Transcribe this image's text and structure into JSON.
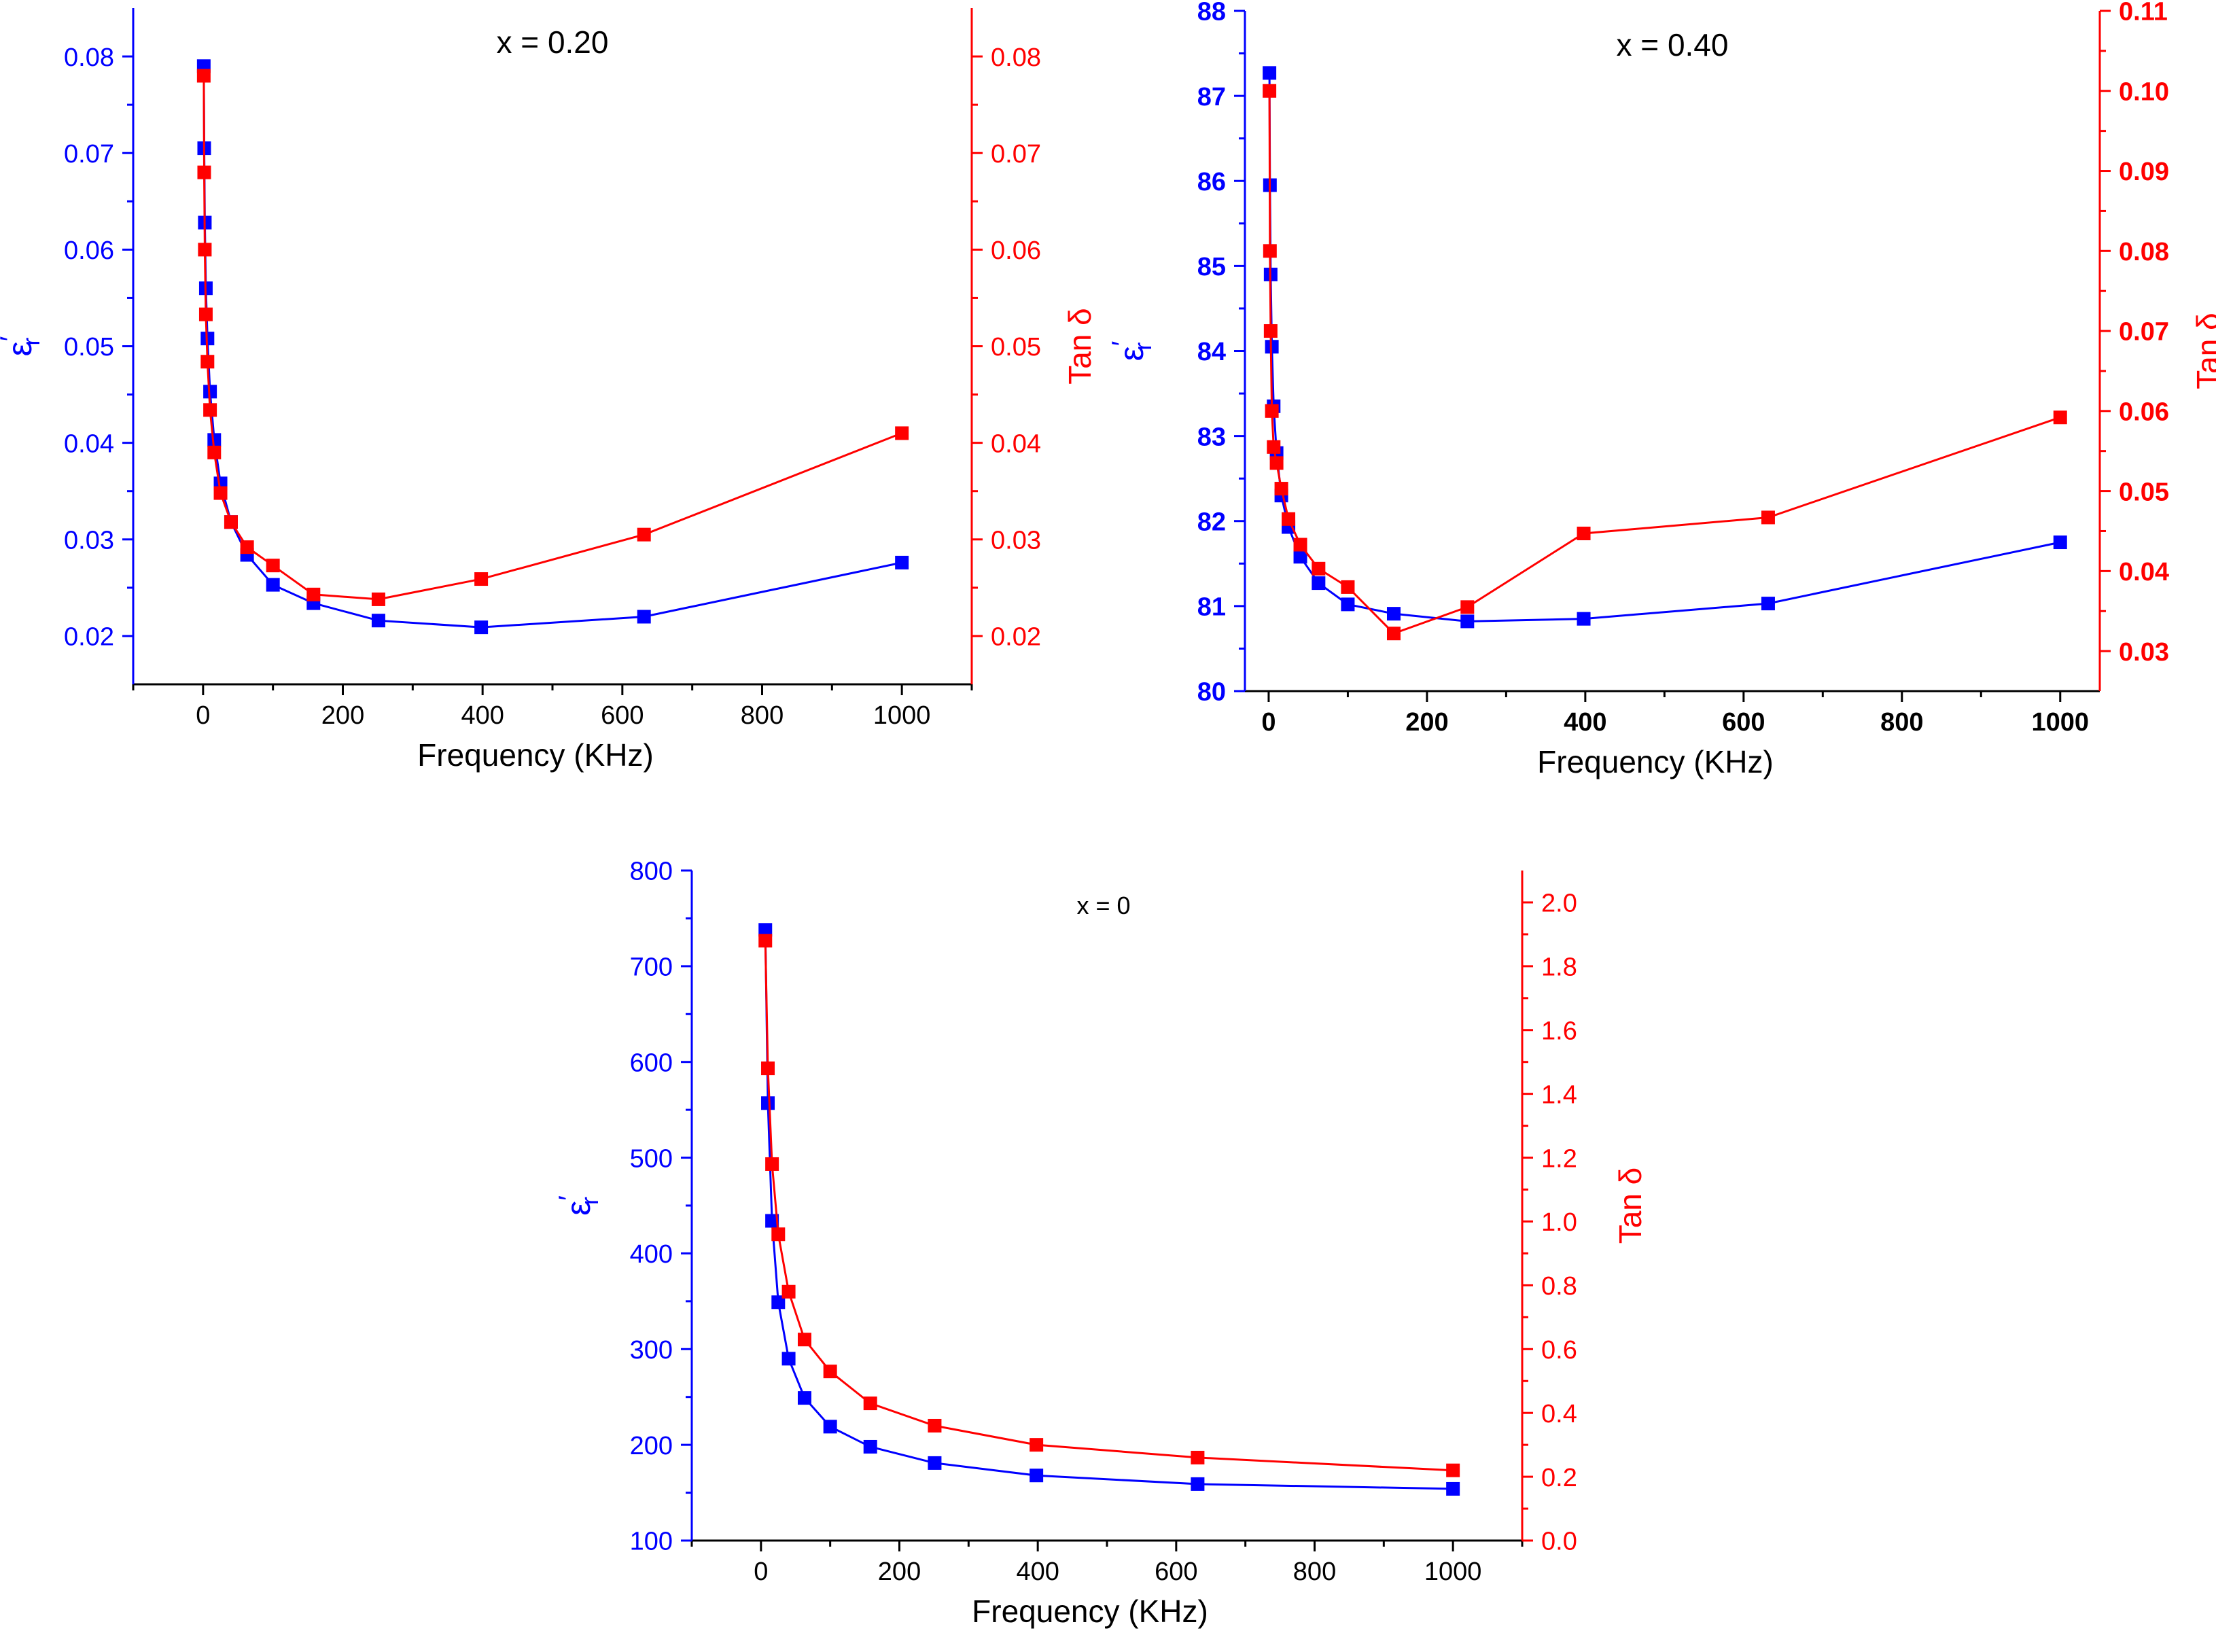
{
  "colors": {
    "epsilon": "#0000ff",
    "tan": "#ff0000",
    "axis": "#000000"
  },
  "chart_data": [
    {
      "type": "line",
      "title": "x = 0.20",
      "xlabel": "Frequency (KHz)",
      "ylabel_left": {
        "main": "ε",
        "prime": "′",
        "sub": "r"
      },
      "ylabel_right": "Tan δ",
      "bold_ticks": false,
      "xlim": [
        -100,
        1100
      ],
      "ylim_left": [
        0.015,
        0.085
      ],
      "ylim_right": [
        0.015,
        0.085
      ],
      "x_ticks": [
        0,
        200,
        400,
        600,
        800,
        1000
      ],
      "y_left_ticks": [
        0.02,
        0.03,
        0.04,
        0.05,
        0.06,
        0.07,
        0.08
      ],
      "y_left_tick_labels": [
        "0.02",
        "0.03",
        "0.04",
        "0.05",
        "0.06",
        "0.07",
        "0.08"
      ],
      "y_right_ticks": [
        0.02,
        0.03,
        0.04,
        0.05,
        0.06,
        0.07,
        0.08
      ],
      "y_right_tick_labels": [
        "0.02",
        "0.03",
        "0.04",
        "0.05",
        "0.06",
        "0.07",
        "0.08"
      ],
      "series": [
        {
          "axis": "left",
          "color": "#0000ff",
          "x": [
            1,
            1.6,
            2.5,
            4,
            6.3,
            10,
            16,
            25,
            40,
            63,
            100,
            158,
            251,
            398,
            631,
            1000
          ],
          "y": [
            0.079,
            0.0705,
            0.0628,
            0.056,
            0.0508,
            0.0453,
            0.0403,
            0.0358,
            0.0318,
            0.0284,
            0.0253,
            0.0234,
            0.0216,
            0.0209,
            0.022,
            0.0276
          ]
        },
        {
          "axis": "right",
          "color": "#ff0000",
          "x": [
            1,
            1.6,
            2.5,
            4,
            6.3,
            10,
            16,
            25,
            40,
            63,
            100,
            158,
            251,
            398,
            631,
            1000
          ],
          "y": [
            0.078,
            0.068,
            0.06,
            0.0533,
            0.0484,
            0.0434,
            0.039,
            0.0348,
            0.0318,
            0.0292,
            0.0273,
            0.0243,
            0.0238,
            0.0259,
            0.0305,
            0.041
          ]
        }
      ]
    },
    {
      "type": "line",
      "title": "x = 0.40",
      "xlabel": "Frequency (KHz)",
      "ylabel_left": {
        "main": "ε",
        "prime": "′",
        "sub": "r"
      },
      "ylabel_right": "Tan δ",
      "bold_ticks": true,
      "xlim": [
        -30,
        1050
      ],
      "ylim_left": [
        80,
        88
      ],
      "ylim_right": [
        0.025,
        0.11
      ],
      "x_ticks": [
        0,
        200,
        400,
        600,
        800,
        1000
      ],
      "y_left_ticks": [
        80,
        81,
        82,
        83,
        84,
        85,
        86,
        87,
        88
      ],
      "y_left_tick_labels": [
        "80",
        "81",
        "82",
        "83",
        "84",
        "85",
        "86",
        "87",
        "88"
      ],
      "y_right_ticks": [
        0.03,
        0.04,
        0.05,
        0.06,
        0.07,
        0.08,
        0.09,
        0.1,
        0.11
      ],
      "y_right_tick_labels": [
        "0.03",
        "0.04",
        "0.05",
        "0.06",
        "0.07",
        "0.08",
        "0.09",
        "0.10",
        "0.11"
      ],
      "series": [
        {
          "axis": "left",
          "color": "#0000ff",
          "x": [
            1,
            1.6,
            2.5,
            4,
            6.3,
            10,
            16,
            25,
            40,
            63,
            100,
            158,
            251,
            398,
            631,
            1000
          ],
          "y": [
            87.27,
            85.95,
            84.9,
            84.05,
            83.35,
            82.8,
            82.3,
            81.93,
            81.58,
            81.27,
            81.02,
            80.91,
            80.82,
            80.85,
            81.03,
            81.75
          ]
        },
        {
          "axis": "right",
          "color": "#ff0000",
          "x": [
            1,
            1.6,
            2.5,
            4,
            6.3,
            10,
            16,
            25,
            40,
            63,
            100,
            158,
            251,
            398,
            631,
            1000
          ],
          "y": [
            0.1,
            0.08,
            0.07,
            0.06,
            0.0555,
            0.0535,
            0.0503,
            0.0465,
            0.0433,
            0.0403,
            0.038,
            0.0322,
            0.0355,
            0.0447,
            0.0467,
            0.0592
          ]
        }
      ]
    },
    {
      "type": "line",
      "title": "x = 0",
      "xlabel": "Frequency (KHz)",
      "ylabel_left": {
        "main": "ε",
        "prime": "′",
        "sub": "r"
      },
      "ylabel_right": "Tan δ",
      "bold_ticks": false,
      "xlim": [
        -100,
        1100
      ],
      "ylim_left": [
        100,
        800
      ],
      "ylim_right": [
        0,
        2.1
      ],
      "x_ticks": [
        0,
        200,
        400,
        600,
        800,
        1000
      ],
      "y_left_ticks": [
        100,
        200,
        300,
        400,
        500,
        600,
        700,
        800
      ],
      "y_left_tick_labels": [
        "100",
        "200",
        "300",
        "400",
        "500",
        "600",
        "700",
        "800"
      ],
      "y_right_ticks": [
        0,
        0.2,
        0.4,
        0.6,
        0.8,
        1,
        1.2,
        1.4,
        1.6,
        1.8,
        2
      ],
      "y_right_tick_labels": [
        "0.0",
        "0.2",
        "0.4",
        "0.6",
        "0.8",
        "1.0",
        "1.2",
        "1.4",
        "1.6",
        "1.8",
        "2.0"
      ],
      "series": [
        {
          "axis": "left",
          "color": "#0000ff",
          "x": [
            6.3,
            10,
            16,
            25,
            40,
            63,
            100,
            158,
            251,
            398,
            631,
            1000
          ],
          "y": [
            738,
            557,
            434,
            349,
            290,
            249,
            219,
            198,
            181,
            168,
            159,
            154
          ]
        },
        {
          "axis": "right",
          "color": "#ff0000",
          "x": [
            6.3,
            10,
            16,
            25,
            40,
            63,
            100,
            158,
            251,
            398,
            631,
            1000
          ],
          "y": [
            1.88,
            1.48,
            1.18,
            0.96,
            0.78,
            0.63,
            0.53,
            0.43,
            0.36,
            0.3,
            0.26,
            0.22
          ]
        }
      ]
    }
  ]
}
